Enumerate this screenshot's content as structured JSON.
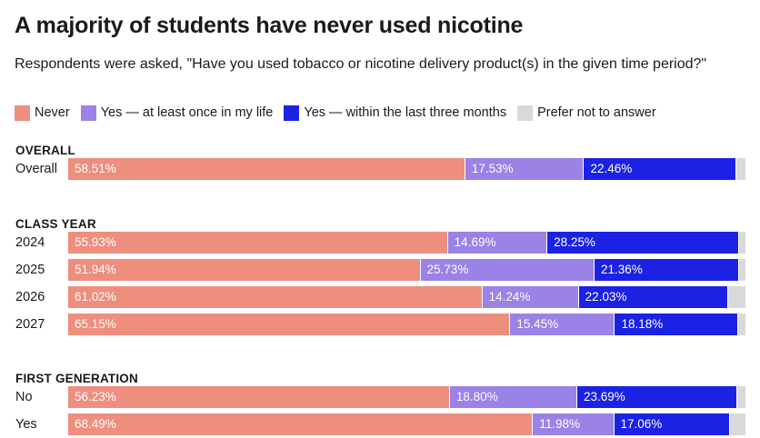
{
  "title": "A majority of students have never used nicotine",
  "subtitle": "Respondents were asked, \"Have you used tobacco or nicotine delivery product(s) in the given time period?\"",
  "colors": {
    "never": "#ee8e7f",
    "once": "#9b82e6",
    "recent": "#1c22e3",
    "prefer": "#d9d9d9"
  },
  "chart_data": {
    "type": "bar",
    "orientation": "horizontal",
    "stacked": true,
    "unit": "%",
    "legend": [
      {
        "key": "never",
        "label": "Never"
      },
      {
        "key": "once",
        "label": "Yes — at least once in my life"
      },
      {
        "key": "recent",
        "label": "Yes — within the last three months"
      },
      {
        "key": "prefer",
        "label": "Prefer not to answer"
      }
    ],
    "groups": [
      {
        "title": "OVERALL",
        "rows": [
          {
            "label": "Overall",
            "values": {
              "never": 58.51,
              "once": 17.53,
              "recent": 22.46,
              "prefer": 1.5
            },
            "labels": {
              "never": "58.51%",
              "once": "17.53%",
              "recent": "22.46%",
              "prefer": ""
            }
          }
        ]
      },
      {
        "title": "CLASS YEAR",
        "rows": [
          {
            "label": "2024",
            "values": {
              "never": 55.93,
              "once": 14.69,
              "recent": 28.25,
              "prefer": 1.13
            },
            "labels": {
              "never": "55.93%",
              "once": "14.69%",
              "recent": "28.25%",
              "prefer": ""
            }
          },
          {
            "label": "2025",
            "values": {
              "never": 51.94,
              "once": 25.73,
              "recent": 21.36,
              "prefer": 0.97
            },
            "labels": {
              "never": "51.94%",
              "once": "25.73%",
              "recent": "21.36%",
              "prefer": ""
            }
          },
          {
            "label": "2026",
            "values": {
              "never": 61.02,
              "once": 14.24,
              "recent": 22.03,
              "prefer": 2.71
            },
            "labels": {
              "never": "61.02%",
              "once": "14.24%",
              "recent": "22.03%",
              "prefer": ""
            }
          },
          {
            "label": "2027",
            "values": {
              "never": 65.15,
              "once": 15.45,
              "recent": 18.18,
              "prefer": 1.22
            },
            "labels": {
              "never": "65.15%",
              "once": "15.45%",
              "recent": "18.18%",
              "prefer": ""
            }
          }
        ]
      },
      {
        "title": "FIRST GENERATION",
        "rows": [
          {
            "label": "No",
            "values": {
              "never": 56.23,
              "once": 18.8,
              "recent": 23.69,
              "prefer": 1.28
            },
            "labels": {
              "never": "56.23%",
              "once": "18.80%",
              "recent": "23.69%",
              "prefer": ""
            }
          },
          {
            "label": "Yes",
            "values": {
              "never": 68.49,
              "once": 11.98,
              "recent": 17.06,
              "prefer": 2.47
            },
            "labels": {
              "never": "68.49%",
              "once": "11.98%",
              "recent": "17.06%",
              "prefer": ""
            }
          }
        ]
      }
    ]
  }
}
